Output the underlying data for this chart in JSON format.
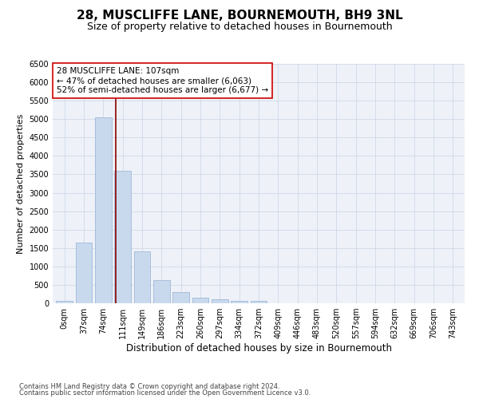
{
  "title1": "28, MUSCLIFFE LANE, BOURNEMOUTH, BH9 3NL",
  "title2": "Size of property relative to detached houses in Bournemouth",
  "xlabel": "Distribution of detached houses by size in Bournemouth",
  "ylabel": "Number of detached properties",
  "bin_labels": [
    "0sqm",
    "37sqm",
    "74sqm",
    "111sqm",
    "149sqm",
    "186sqm",
    "223sqm",
    "260sqm",
    "297sqm",
    "334sqm",
    "372sqm",
    "409sqm",
    "446sqm",
    "483sqm",
    "520sqm",
    "557sqm",
    "594sqm",
    "632sqm",
    "669sqm",
    "706sqm",
    "743sqm"
  ],
  "bar_values": [
    75,
    1650,
    5050,
    3600,
    1400,
    620,
    300,
    150,
    100,
    75,
    75,
    0,
    0,
    0,
    0,
    0,
    0,
    0,
    0,
    0,
    0
  ],
  "bar_color": "#c9d9ed",
  "bar_edge_color": "#a0b8d8",
  "vline_x": 2.63,
  "vline_color": "#8b0000",
  "annotation_line1": "28 MUSCLIFFE LANE: 107sqm",
  "annotation_line2": "← 47% of detached houses are smaller (6,063)",
  "annotation_line3": "52% of semi-detached houses are larger (6,677) →",
  "annotation_box_color": "#ffffff",
  "annotation_box_edge": "#cc0000",
  "ylim": [
    0,
    6500
  ],
  "yticks": [
    0,
    500,
    1000,
    1500,
    2000,
    2500,
    3000,
    3500,
    4000,
    4500,
    5000,
    5500,
    6000,
    6500
  ],
  "grid_color": "#d0d8e8",
  "bg_color": "#eef2f8",
  "footer1": "Contains HM Land Registry data © Crown copyright and database right 2024.",
  "footer2": "Contains public sector information licensed under the Open Government Licence v3.0.",
  "title1_fontsize": 11,
  "title2_fontsize": 9,
  "xlabel_fontsize": 8.5,
  "ylabel_fontsize": 8,
  "tick_fontsize": 7,
  "annotation_fontsize": 7.5,
  "footer_fontsize": 6
}
